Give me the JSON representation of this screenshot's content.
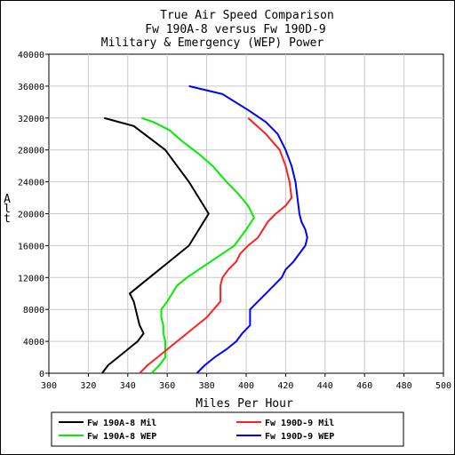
{
  "chart_data": {
    "type": "line",
    "title": [
      "True Air Speed Comparison",
      "Fw 190A-8 versus Fw 190D-9",
      "Military & Emergency (WEP) Power"
    ],
    "xlabel": "Miles Per Hour",
    "ylabel": "Alt",
    "xlim": [
      300,
      500
    ],
    "ylim": [
      0,
      40000
    ],
    "xticks": [
      "300",
      "320",
      "340",
      "360",
      "380",
      "400",
      "420",
      "440",
      "460",
      "480",
      "500"
    ],
    "yticks": [
      "0",
      "4000",
      "8000",
      "12000",
      "16000",
      "20000",
      "24000",
      "28000",
      "32000",
      "36000",
      "40000"
    ],
    "grid": true,
    "legend_placement": "bottom",
    "series": [
      {
        "name": "Fw 190A-8 Mil",
        "color": "#000000",
        "points": [
          [
            327,
            0
          ],
          [
            330,
            1000
          ],
          [
            335,
            2000
          ],
          [
            340,
            3000
          ],
          [
            345,
            4000
          ],
          [
            348,
            5000
          ],
          [
            346,
            6000
          ],
          [
            345,
            7000
          ],
          [
            344,
            8000
          ],
          [
            343,
            9000
          ],
          [
            341,
            10000
          ],
          [
            346,
            11000
          ],
          [
            351,
            12000
          ],
          [
            356,
            13000
          ],
          [
            361,
            14000
          ],
          [
            366,
            15000
          ],
          [
            371,
            16000
          ],
          [
            376,
            18000
          ],
          [
            381,
            20000
          ],
          [
            376,
            22000
          ],
          [
            371,
            24000
          ],
          [
            365,
            26000
          ],
          [
            359,
            28000
          ],
          [
            351,
            29500
          ],
          [
            343,
            31000
          ],
          [
            328,
            32000
          ]
        ]
      },
      {
        "name": "Fw 190A-8 WEP",
        "color": "#00ee00",
        "points": [
          [
            352,
            0
          ],
          [
            356,
            1000
          ],
          [
            359,
            2000
          ],
          [
            359,
            4000
          ],
          [
            358,
            5000
          ],
          [
            358,
            6000
          ],
          [
            357,
            7000
          ],
          [
            357,
            8000
          ],
          [
            360,
            9000
          ],
          [
            365,
            11000
          ],
          [
            370,
            12000
          ],
          [
            376,
            13000
          ],
          [
            382,
            14000
          ],
          [
            388,
            15000
          ],
          [
            394,
            16000
          ],
          [
            400,
            18000
          ],
          [
            404,
            19500
          ],
          [
            401,
            21000
          ],
          [
            396,
            22500
          ],
          [
            390,
            24000
          ],
          [
            383,
            26000
          ],
          [
            376,
            27500
          ],
          [
            368,
            29000
          ],
          [
            361,
            30500
          ],
          [
            353,
            31500
          ],
          [
            347,
            32000
          ]
        ]
      },
      {
        "name": "Fw 190D-9 Mil",
        "color": "#ff2020",
        "points": [
          [
            346,
            0
          ],
          [
            350,
            1000
          ],
          [
            355,
            2000
          ],
          [
            360,
            3000
          ],
          [
            365,
            4000
          ],
          [
            370,
            5000
          ],
          [
            375,
            6000
          ],
          [
            380,
            7000
          ],
          [
            387,
            9000
          ],
          [
            387,
            11000
          ],
          [
            388,
            12000
          ],
          [
            391,
            13000
          ],
          [
            395,
            14000
          ],
          [
            397,
            15000
          ],
          [
            401,
            16000
          ],
          [
            406,
            17000
          ],
          [
            411,
            19000
          ],
          [
            415,
            20000
          ],
          [
            420,
            21000
          ],
          [
            423,
            22000
          ],
          [
            422,
            24000
          ],
          [
            420,
            26000
          ],
          [
            417,
            28000
          ],
          [
            410,
            30000
          ],
          [
            401,
            32000
          ]
        ]
      },
      {
        "name": "Fw 190D-9 WEP",
        "color": "#0000ff",
        "points": [
          [
            375,
            0
          ],
          [
            379,
            1000
          ],
          [
            384,
            2000
          ],
          [
            390,
            3000
          ],
          [
            395,
            4000
          ],
          [
            398,
            5000
          ],
          [
            402,
            6000
          ],
          [
            402,
            7000
          ],
          [
            402,
            8000
          ],
          [
            410,
            10000
          ],
          [
            414,
            11000
          ],
          [
            418,
            12000
          ],
          [
            420,
            13000
          ],
          [
            424,
            14000
          ],
          [
            427,
            15000
          ],
          [
            430,
            16000
          ],
          [
            431,
            17000
          ],
          [
            430,
            18000
          ],
          [
            428,
            19000
          ],
          [
            427,
            20000
          ],
          [
            426,
            22000
          ],
          [
            425,
            24000
          ],
          [
            423,
            26000
          ],
          [
            420,
            28000
          ],
          [
            416,
            30000
          ],
          [
            410,
            31500
          ],
          [
            401,
            33000
          ],
          [
            388,
            35000
          ],
          [
            371,
            36000
          ]
        ]
      }
    ]
  }
}
